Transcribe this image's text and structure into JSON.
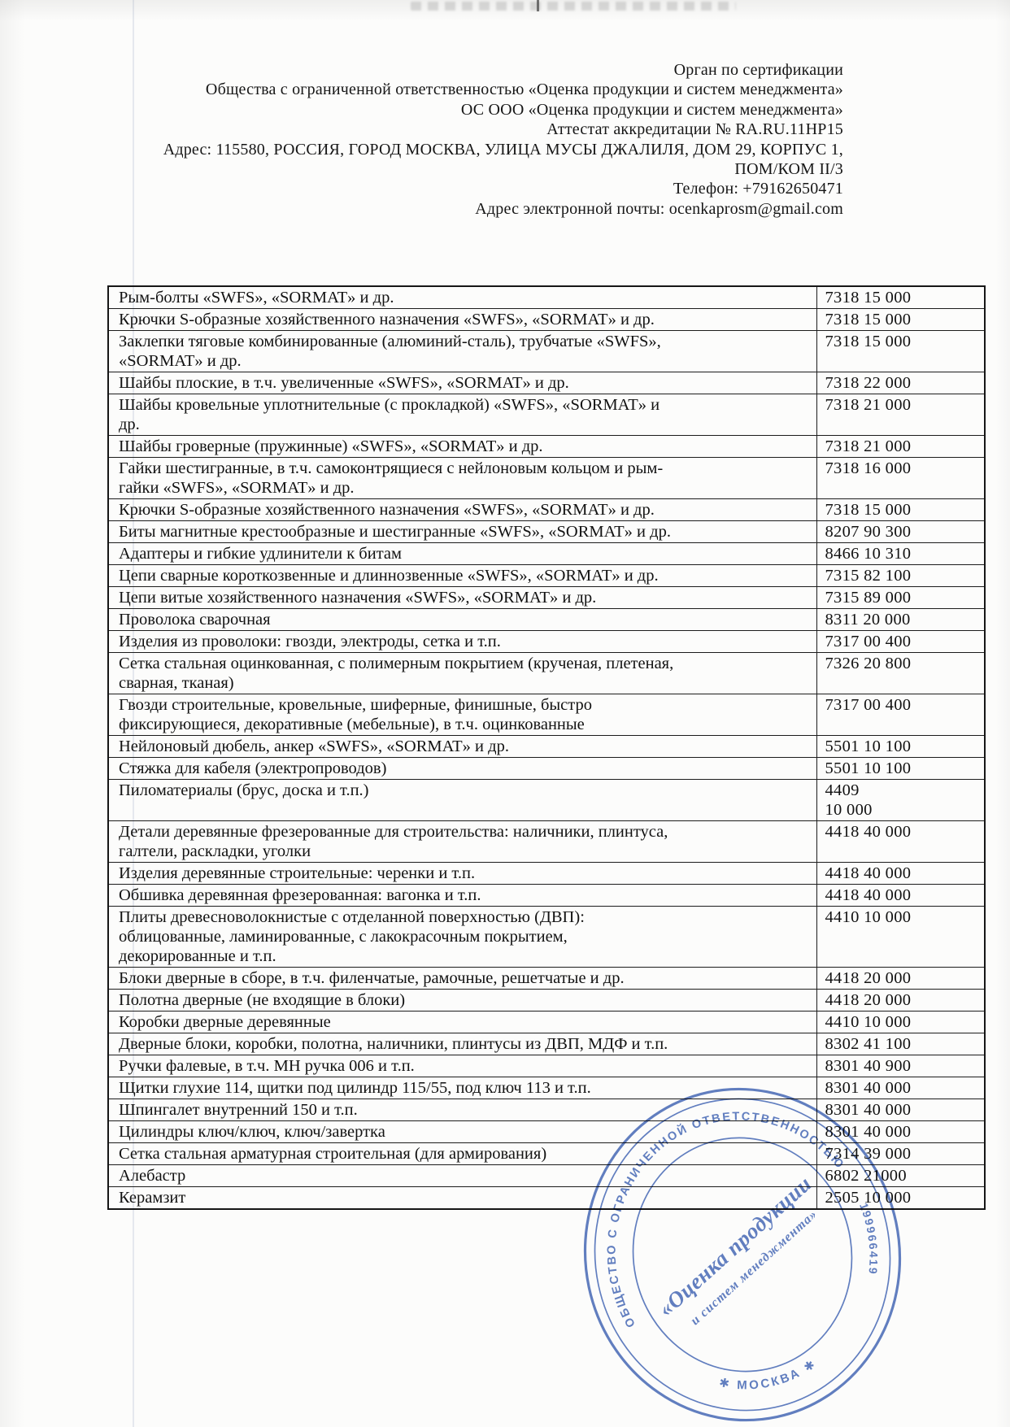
{
  "document": {
    "header_lines": [
      "Орган по сертификации",
      "Общества с ограниченной ответственностью «Оценка продукции и систем менеджмента»",
      "ОС ООО «Оценка продукции и систем менеджмента»",
      "Аттестат аккредитации № RA.RU.11HP15",
      "Адрес: 115580, РОССИЯ, ГОРОД МОСКВА, УЛИЦА МУСЫ ДЖАЛИЛЯ, ДОМ 29, КОРПУС 1,",
      "ПОМ/КОМ II/3",
      "Телефон: +79162650471",
      "Адрес электронной почты: ocenkaprosm@gmail.com"
    ],
    "table": {
      "rows": [
        {
          "product": "Рым-болты «SWFS», «SORMAT» и др.",
          "code": "7318 15 000"
        },
        {
          "product": "Крючки S-образные хозяйственного назначения «SWFS», «SORMAT» и др.",
          "code": "7318 15 000"
        },
        {
          "product": "Заклепки тяговые комбинированные (алюминий-сталь), трубчатые «SWFS»,\n«SORMAT» и др.\n",
          "code": "7318 15 000"
        },
        {
          "product": "Шайбы плоские, в т.ч. увеличенные «SWFS», «SORMAT» и др.",
          "code": "7318 22 000"
        },
        {
          "product": "Шайбы кровельные уплотнительные (с прокладкой) «SWFS», «SORMAT» и\nдр.\n",
          "code": "7318 21 000"
        },
        {
          "product": "Шайбы гроверные (пружинные) «SWFS», «SORMAT» и др.",
          "code": "7318 21 000"
        },
        {
          "product": "Гайки шестигранные, в т.ч. самоконтрящиеся с нейлоновым кольцом и рым-\nгайки «SWFS», «SORMAT» и др.\n",
          "code": "7318 16 000"
        },
        {
          "product": "Крючки S-образные хозяйственного назначения «SWFS», «SORMAT» и др.",
          "code": "7318 15 000"
        },
        {
          "product": "Биты магнитные крестообразные и шестигранные «SWFS», «SORMAT» и др.",
          "code": "8207 90 300"
        },
        {
          "product": "Адаптеры и гибкие удлинители к битам",
          "code": "8466 10 310"
        },
        {
          "product": "Цепи сварные короткозвенные и длиннозвенные «SWFS», «SORMAT» и др.",
          "code": "7315 82 100"
        },
        {
          "product": "Цепи витые хозяйственного назначения «SWFS», «SORMAT» и др.",
          "code": "7315 89 000"
        },
        {
          "product": "Проволока сварочная",
          "code": "8311 20 000"
        },
        {
          "product": "Изделия из проволоки: гвозди, электроды, сетка и т.п.",
          "code": "7317 00 400"
        },
        {
          "product": "Сетка стальная оцинкованная, с полимерным покрытием (крученая, плетеная,\nсварная, тканая)\n",
          "code": "7326 20 800"
        },
        {
          "product": "Гвозди строительные, кровельные, шиферные, финишные, быстро\nфиксирующиеся, декоративные (мебельные), в т.ч. оцинкованные",
          "code": "7317 00 400"
        },
        {
          "product": "Нейлоновый дюбель, анкер «SWFS», «SORMAT» и др.",
          "code": "5501 10 100"
        },
        {
          "product": "Стяжка для кабеля (электропроводов)",
          "code": "5501 10 100"
        },
        {
          "product": "Пиломатериалы (брус, доска и т.п.)",
          "code": "4409\n10 000"
        },
        {
          "product": "Детали деревянные фрезерованные для строительства: наличники, плинтуса,\nгалтели, раскладки, уголки",
          "code": "4418 40 000"
        },
        {
          "product": "Изделия деревянные строительные: черенки и т.п.",
          "code": "4418 40 000"
        },
        {
          "product": "Обшивка деревянная фрезерованная: вагонка и т.п.",
          "code": "4418 40 000"
        },
        {
          "product": "Плиты древесноволокнистые с отделанной поверхностью (ДВП):\nоблицованные, ламинированные, с лакокрасочным покрытием,\nдекорированные и т.п.",
          "code": "4410 10 000"
        },
        {
          "product": "Блоки дверные в сборе, в т.ч. филенчатые, рамочные, решетчатые и др.",
          "code": "4418 20 000"
        },
        {
          "product": "Полотна дверные (не входящие в блоки)",
          "code": "4418 20 000"
        },
        {
          "product": "Коробки дверные деревянные",
          "code": "4410 10 000"
        },
        {
          "product": "Дверные блоки, коробки, полотна, наличники, плинтусы из ДВП, МДФ и т.п.",
          "code": "8302 41 100"
        },
        {
          "product": "Ручки фалевые, в т.ч. МН ручка 006 и т.п.",
          "code": "8301 40 900"
        },
        {
          "product": "Щитки глухие 114, щитки под цилиндр 115/55, под ключ 113 и т.п.",
          "code": "8301 40 000"
        },
        {
          "product": "Шпингалет внутренний 150 и т.п.",
          "code": "8301 40 000"
        },
        {
          "product": "Цилиндры ключ/ключ, ключ/завертка",
          "code": "8301 40 000"
        },
        {
          "product": "Сетка стальная арматурная строительная (для армирования)",
          "code": "7314 39 000"
        },
        {
          "product": "Алебастр",
          "code": "6802 21000"
        },
        {
          "product": "Керамзит",
          "code": "2505 10 000"
        }
      ]
    },
    "stamp": {
      "ring_top_text": "ОБЩЕСТВО С ОГРАНИЧЕННОЙ ОТВЕТСТВЕННОСТЬЮ",
      "ring_digits": "199966419",
      "ring_bottom_text": "✱ МОСКВА ✱",
      "center_text_line1": "«Оценка продукции",
      "center_text_line2": "и систем менеджмента»",
      "ink_color": "#3f63b5"
    }
  }
}
